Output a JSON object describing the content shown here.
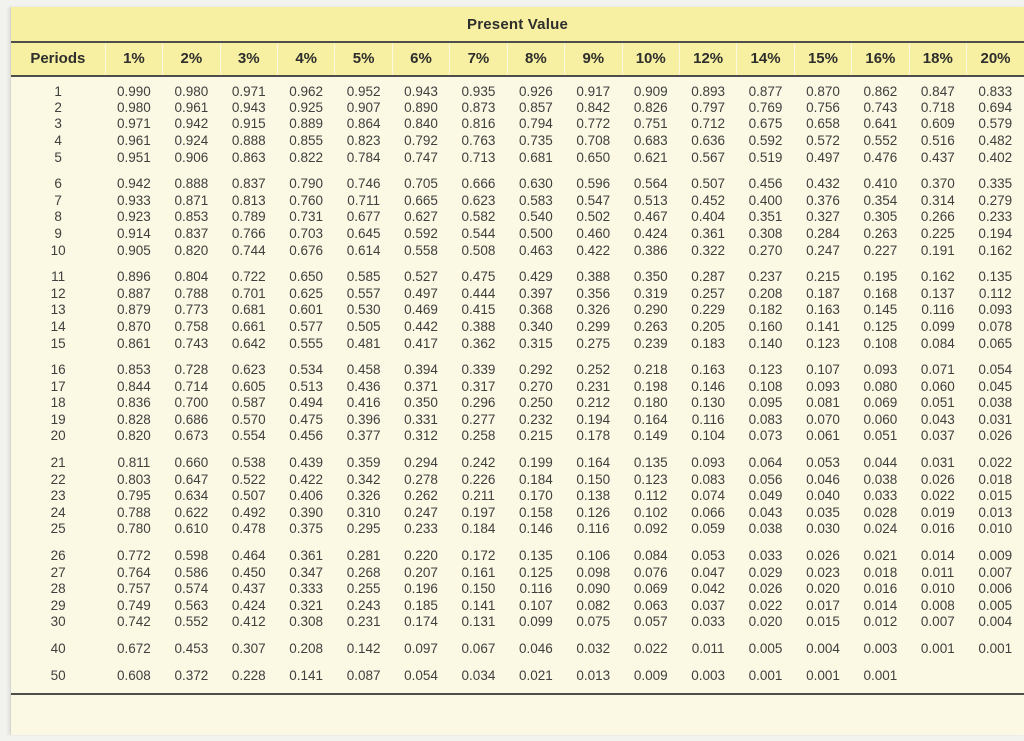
{
  "page": {
    "title": "Present Value"
  },
  "colors": {
    "band": "#f7f0a2",
    "paper": "#fbf8e4",
    "rule": "#4e4e4a"
  },
  "table": {
    "header": [
      "Periods",
      "1%",
      "2%",
      "3%",
      "4%",
      "5%",
      "6%",
      "7%",
      "8%",
      "9%",
      "10%",
      "12%",
      "14%",
      "15%",
      "16%",
      "18%",
      "20%"
    ],
    "groups": [
      {
        "rows": [
          [
            "1",
            "0.990",
            "0.980",
            "0.971",
            "0.962",
            "0.952",
            "0.943",
            "0.935",
            "0.926",
            "0.917",
            "0.909",
            "0.893",
            "0.877",
            "0.870",
            "0.862",
            "0.847",
            "0.833"
          ],
          [
            "2",
            "0.980",
            "0.961",
            "0.943",
            "0.925",
            "0.907",
            "0.890",
            "0.873",
            "0.857",
            "0.842",
            "0.826",
            "0.797",
            "0.769",
            "0.756",
            "0.743",
            "0.718",
            "0.694"
          ],
          [
            "3",
            "0.971",
            "0.942",
            "0.915",
            "0.889",
            "0.864",
            "0.840",
            "0.816",
            "0.794",
            "0.772",
            "0.751",
            "0.712",
            "0.675",
            "0.658",
            "0.641",
            "0.609",
            "0.579"
          ],
          [
            "4",
            "0.961",
            "0.924",
            "0.888",
            "0.855",
            "0.823",
            "0.792",
            "0.763",
            "0.735",
            "0.708",
            "0.683",
            "0.636",
            "0.592",
            "0.572",
            "0.552",
            "0.516",
            "0.482"
          ],
          [
            "5",
            "0.951",
            "0.906",
            "0.863",
            "0.822",
            "0.784",
            "0.747",
            "0.713",
            "0.681",
            "0.650",
            "0.621",
            "0.567",
            "0.519",
            "0.497",
            "0.476",
            "0.437",
            "0.402"
          ]
        ]
      },
      {
        "rows": [
          [
            "6",
            "0.942",
            "0.888",
            "0.837",
            "0.790",
            "0.746",
            "0.705",
            "0.666",
            "0.630",
            "0.596",
            "0.564",
            "0.507",
            "0.456",
            "0.432",
            "0.410",
            "0.370",
            "0.335"
          ],
          [
            "7",
            "0.933",
            "0.871",
            "0.813",
            "0.760",
            "0.711",
            "0.665",
            "0.623",
            "0.583",
            "0.547",
            "0.513",
            "0.452",
            "0.400",
            "0.376",
            "0.354",
            "0.314",
            "0.279"
          ],
          [
            "8",
            "0.923",
            "0.853",
            "0.789",
            "0.731",
            "0.677",
            "0.627",
            "0.582",
            "0.540",
            "0.502",
            "0.467",
            "0.404",
            "0.351",
            "0.327",
            "0.305",
            "0.266",
            "0.233"
          ],
          [
            "9",
            "0.914",
            "0.837",
            "0.766",
            "0.703",
            "0.645",
            "0.592",
            "0.544",
            "0.500",
            "0.460",
            "0.424",
            "0.361",
            "0.308",
            "0.284",
            "0.263",
            "0.225",
            "0.194"
          ],
          [
            "10",
            "0.905",
            "0.820",
            "0.744",
            "0.676",
            "0.614",
            "0.558",
            "0.508",
            "0.463",
            "0.422",
            "0.386",
            "0.322",
            "0.270",
            "0.247",
            "0.227",
            "0.191",
            "0.162"
          ]
        ]
      },
      {
        "rows": [
          [
            "11",
            "0.896",
            "0.804",
            "0.722",
            "0.650",
            "0.585",
            "0.527",
            "0.475",
            "0.429",
            "0.388",
            "0.350",
            "0.287",
            "0.237",
            "0.215",
            "0.195",
            "0.162",
            "0.135"
          ],
          [
            "12",
            "0.887",
            "0.788",
            "0.701",
            "0.625",
            "0.557",
            "0.497",
            "0.444",
            "0.397",
            "0.356",
            "0.319",
            "0.257",
            "0.208",
            "0.187",
            "0.168",
            "0.137",
            "0.112"
          ],
          [
            "13",
            "0.879",
            "0.773",
            "0.681",
            "0.601",
            "0.530",
            "0.469",
            "0.415",
            "0.368",
            "0.326",
            "0.290",
            "0.229",
            "0.182",
            "0.163",
            "0.145",
            "0.116",
            "0.093"
          ],
          [
            "14",
            "0.870",
            "0.758",
            "0.661",
            "0.577",
            "0.505",
            "0.442",
            "0.388",
            "0.340",
            "0.299",
            "0.263",
            "0.205",
            "0.160",
            "0.141",
            "0.125",
            "0.099",
            "0.078"
          ],
          [
            "15",
            "0.861",
            "0.743",
            "0.642",
            "0.555",
            "0.481",
            "0.417",
            "0.362",
            "0.315",
            "0.275",
            "0.239",
            "0.183",
            "0.140",
            "0.123",
            "0.108",
            "0.084",
            "0.065"
          ]
        ]
      },
      {
        "rows": [
          [
            "16",
            "0.853",
            "0.728",
            "0.623",
            "0.534",
            "0.458",
            "0.394",
            "0.339",
            "0.292",
            "0.252",
            "0.218",
            "0.163",
            "0.123",
            "0.107",
            "0.093",
            "0.071",
            "0.054"
          ],
          [
            "17",
            "0.844",
            "0.714",
            "0.605",
            "0.513",
            "0.436",
            "0.371",
            "0.317",
            "0.270",
            "0.231",
            "0.198",
            "0.146",
            "0.108",
            "0.093",
            "0.080",
            "0.060",
            "0.045"
          ],
          [
            "18",
            "0.836",
            "0.700",
            "0.587",
            "0.494",
            "0.416",
            "0.350",
            "0.296",
            "0.250",
            "0.212",
            "0.180",
            "0.130",
            "0.095",
            "0.081",
            "0.069",
            "0.051",
            "0.038"
          ],
          [
            "19",
            "0.828",
            "0.686",
            "0.570",
            "0.475",
            "0.396",
            "0.331",
            "0.277",
            "0.232",
            "0.194",
            "0.164",
            "0.116",
            "0.083",
            "0.070",
            "0.060",
            "0.043",
            "0.031"
          ],
          [
            "20",
            "0.820",
            "0.673",
            "0.554",
            "0.456",
            "0.377",
            "0.312",
            "0.258",
            "0.215",
            "0.178",
            "0.149",
            "0.104",
            "0.073",
            "0.061",
            "0.051",
            "0.037",
            "0.026"
          ]
        ]
      },
      {
        "rows": [
          [
            "21",
            "0.811",
            "0.660",
            "0.538",
            "0.439",
            "0.359",
            "0.294",
            "0.242",
            "0.199",
            "0.164",
            "0.135",
            "0.093",
            "0.064",
            "0.053",
            "0.044",
            "0.031",
            "0.022"
          ],
          [
            "22",
            "0.803",
            "0.647",
            "0.522",
            "0.422",
            "0.342",
            "0.278",
            "0.226",
            "0.184",
            "0.150",
            "0.123",
            "0.083",
            "0.056",
            "0.046",
            "0.038",
            "0.026",
            "0.018"
          ],
          [
            "23",
            "0.795",
            "0.634",
            "0.507",
            "0.406",
            "0.326",
            "0.262",
            "0.211",
            "0.170",
            "0.138",
            "0.112",
            "0.074",
            "0.049",
            "0.040",
            "0.033",
            "0.022",
            "0.015"
          ],
          [
            "24",
            "0.788",
            "0.622",
            "0.492",
            "0.390",
            "0.310",
            "0.247",
            "0.197",
            "0.158",
            "0.126",
            "0.102",
            "0.066",
            "0.043",
            "0.035",
            "0.028",
            "0.019",
            "0.013"
          ],
          [
            "25",
            "0.780",
            "0.610",
            "0.478",
            "0.375",
            "0.295",
            "0.233",
            "0.184",
            "0.146",
            "0.116",
            "0.092",
            "0.059",
            "0.038",
            "0.030",
            "0.024",
            "0.016",
            "0.010"
          ]
        ]
      },
      {
        "rows": [
          [
            "26",
            "0.772",
            "0.598",
            "0.464",
            "0.361",
            "0.281",
            "0.220",
            "0.172",
            "0.135",
            "0.106",
            "0.084",
            "0.053",
            "0.033",
            "0.026",
            "0.021",
            "0.014",
            "0.009"
          ],
          [
            "27",
            "0.764",
            "0.586",
            "0.450",
            "0.347",
            "0.268",
            "0.207",
            "0.161",
            "0.125",
            "0.098",
            "0.076",
            "0.047",
            "0.029",
            "0.023",
            "0.018",
            "0.011",
            "0.007"
          ],
          [
            "28",
            "0.757",
            "0.574",
            "0.437",
            "0.333",
            "0.255",
            "0.196",
            "0.150",
            "0.116",
            "0.090",
            "0.069",
            "0.042",
            "0.026",
            "0.020",
            "0.016",
            "0.010",
            "0.006"
          ],
          [
            "29",
            "0.749",
            "0.563",
            "0.424",
            "0.321",
            "0.243",
            "0.185",
            "0.141",
            "0.107",
            "0.082",
            "0.063",
            "0.037",
            "0.022",
            "0.017",
            "0.014",
            "0.008",
            "0.005"
          ],
          [
            "30",
            "0.742",
            "0.552",
            "0.412",
            "0.308",
            "0.231",
            "0.174",
            "0.131",
            "0.099",
            "0.075",
            "0.057",
            "0.033",
            "0.020",
            "0.015",
            "0.012",
            "0.007",
            "0.004"
          ]
        ]
      },
      {
        "rows": [
          [
            "40",
            "0.672",
            "0.453",
            "0.307",
            "0.208",
            "0.142",
            "0.097",
            "0.067",
            "0.046",
            "0.032",
            "0.022",
            "0.011",
            "0.005",
            "0.004",
            "0.003",
            "0.001",
            "0.001"
          ]
        ]
      },
      {
        "rows": [
          [
            "50",
            "0.608",
            "0.372",
            "0.228",
            "0.141",
            "0.087",
            "0.054",
            "0.034",
            "0.021",
            "0.013",
            "0.009",
            "0.003",
            "0.001",
            "0.001",
            "0.001",
            "",
            ""
          ]
        ]
      }
    ]
  }
}
